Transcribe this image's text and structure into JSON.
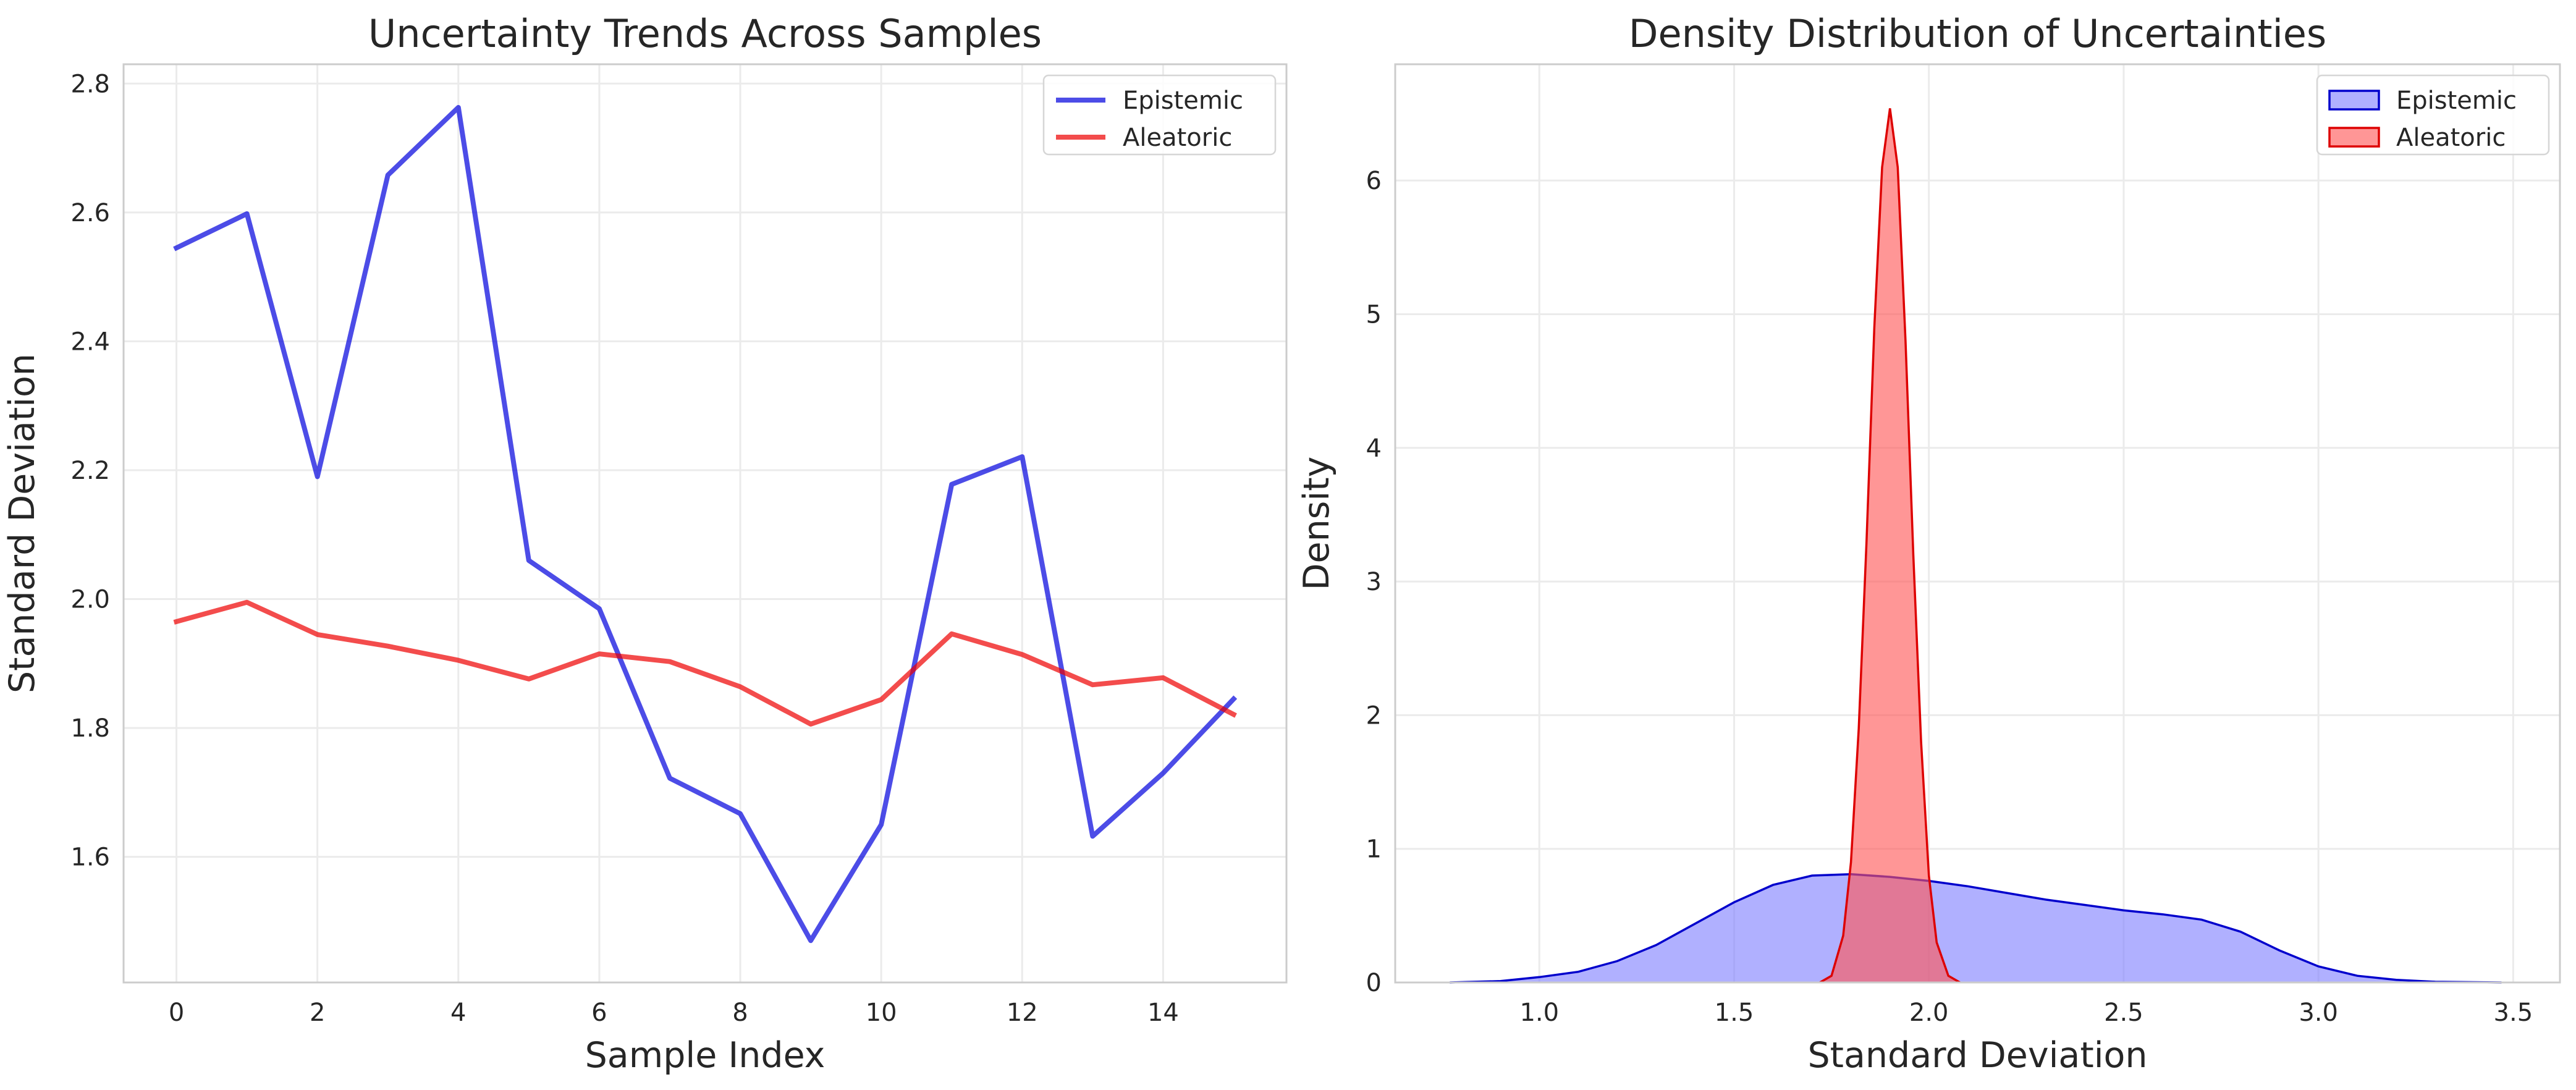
{
  "chart_data": [
    {
      "type": "line",
      "title": "Uncertainty Trends Across Samples",
      "xlabel": "Sample Index",
      "ylabel": "Standard Deviation",
      "xlim": [
        -0.75,
        15.75
      ],
      "ylim": [
        1.405,
        2.83
      ],
      "xticks": [
        0,
        2,
        4,
        6,
        8,
        10,
        12,
        14
      ],
      "yticks": [
        1.6,
        1.8,
        2.0,
        2.2,
        2.4,
        2.6,
        2.8
      ],
      "x": [
        0,
        1,
        2,
        3,
        4,
        5,
        6,
        7,
        8,
        9,
        10,
        11,
        12,
        13,
        14,
        15
      ],
      "series": [
        {
          "name": "Epistemic",
          "color": "#0000dd",
          "values": [
            2.545,
            2.598,
            2.19,
            2.658,
            2.763,
            2.06,
            1.985,
            1.722,
            1.667,
            1.47,
            1.65,
            2.178,
            2.221,
            1.632,
            1.73,
            1.845
          ]
        },
        {
          "name": "Aleatoric",
          "color": "#ee0000",
          "values": [
            1.965,
            1.995,
            1.945,
            1.927,
            1.905,
            1.876,
            1.915,
            1.903,
            1.864,
            1.806,
            1.844,
            1.946,
            1.914,
            1.867,
            1.878,
            1.821
          ]
        }
      ],
      "grid": true,
      "legend": "top-right"
    },
    {
      "type": "area",
      "title": "Density Distribution of Uncertainties",
      "xlabel": "Standard Deviation",
      "ylabel": "Density",
      "xlim": [
        0.63,
        3.62
      ],
      "ylim": [
        0,
        6.87
      ],
      "xticks": [
        1.0,
        1.5,
        2.0,
        2.5,
        3.0,
        3.5
      ],
      "xtick_labels": [
        "1.0",
        "1.5",
        "2.0",
        "2.5",
        "3.0",
        "3.5"
      ],
      "yticks": [
        0,
        1,
        2,
        3,
        4,
        5,
        6
      ],
      "series": [
        {
          "name": "Epistemic",
          "color": "#0000cc",
          "fill": "#8080ff",
          "x": [
            0.77,
            0.9,
            1.0,
            1.1,
            1.2,
            1.3,
            1.4,
            1.5,
            1.6,
            1.7,
            1.8,
            1.9,
            2.0,
            2.1,
            2.2,
            2.3,
            2.4,
            2.5,
            2.6,
            2.7,
            2.8,
            2.9,
            3.0,
            3.1,
            3.2,
            3.3,
            3.47
          ],
          "values": [
            0.0,
            0.01,
            0.04,
            0.08,
            0.16,
            0.28,
            0.44,
            0.6,
            0.73,
            0.8,
            0.81,
            0.79,
            0.76,
            0.72,
            0.67,
            0.62,
            0.58,
            0.54,
            0.51,
            0.47,
            0.38,
            0.24,
            0.12,
            0.05,
            0.02,
            0.005,
            0.0
          ]
        },
        {
          "name": "Aleatoric",
          "color": "#dd0000",
          "fill": "#ff5555",
          "x": [
            1.72,
            1.75,
            1.78,
            1.8,
            1.82,
            1.84,
            1.86,
            1.88,
            1.9,
            1.92,
            1.94,
            1.96,
            1.98,
            2.0,
            2.02,
            2.05,
            2.08
          ],
          "values": [
            0.0,
            0.05,
            0.35,
            0.9,
            1.9,
            3.3,
            4.9,
            6.1,
            6.54,
            6.1,
            4.8,
            3.2,
            1.8,
            0.8,
            0.3,
            0.05,
            0.0
          ]
        }
      ],
      "grid": true,
      "legend": "top-right"
    }
  ]
}
